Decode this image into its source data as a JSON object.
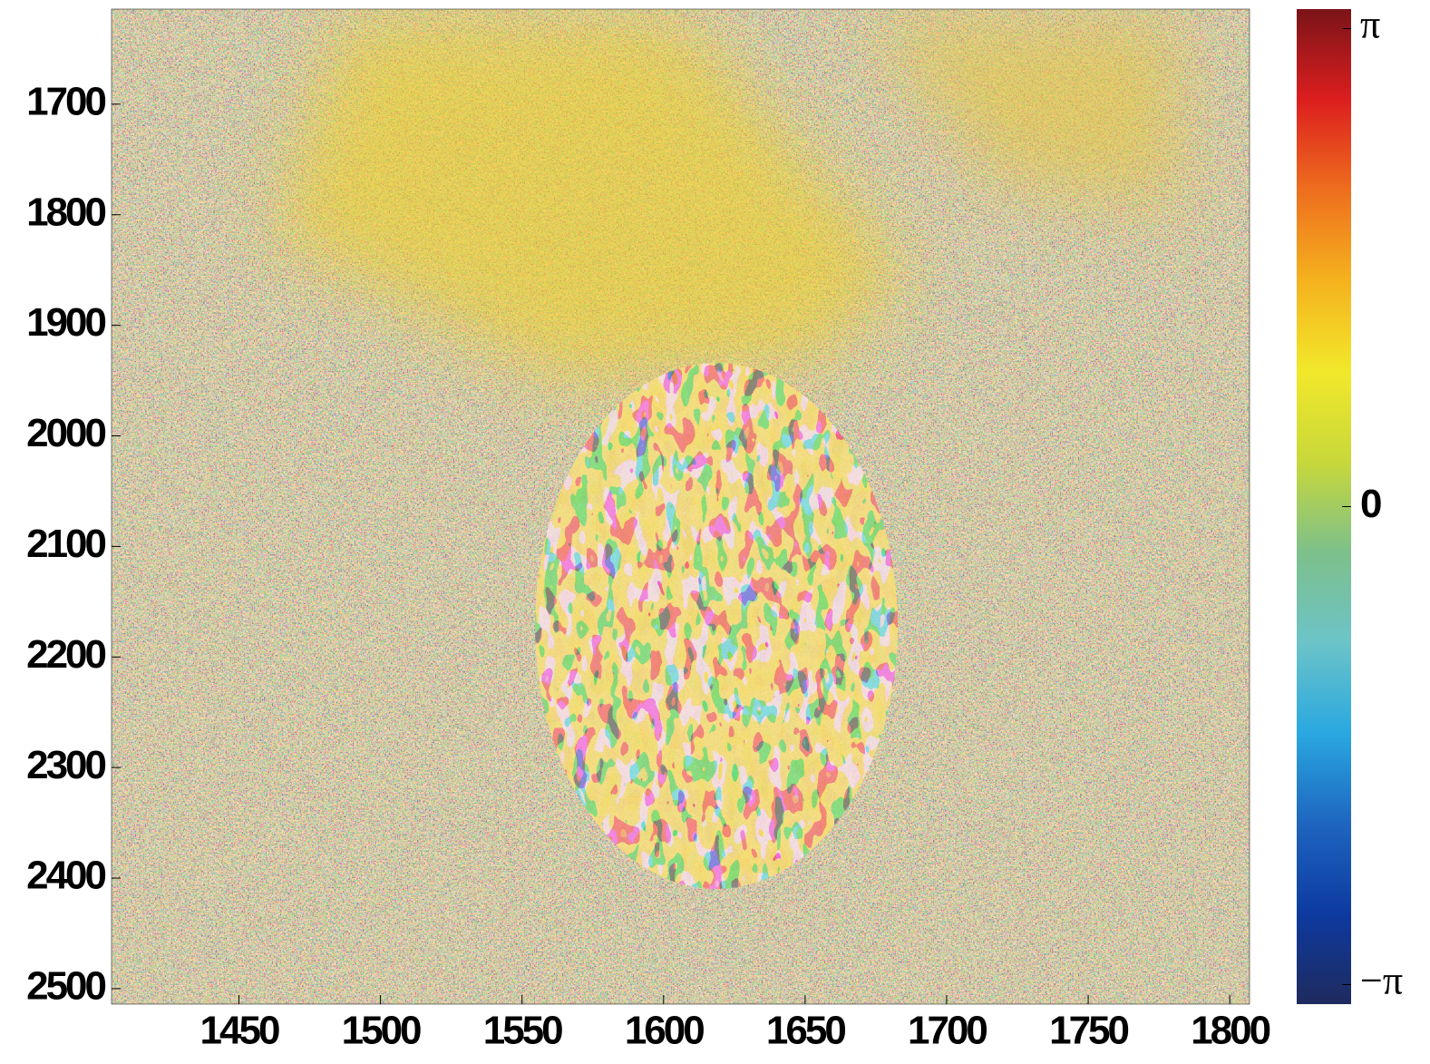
{
  "chart_data": {
    "type": "heatmap",
    "xlim": [
      1405,
      1807
    ],
    "xticks": [
      1450,
      1500,
      1550,
      1600,
      1650,
      1700,
      1750,
      1800
    ],
    "ylim": [
      1614,
      2514
    ],
    "yticks": [
      1700,
      1800,
      1900,
      2000,
      2100,
      2200,
      2300,
      2400,
      2500
    ],
    "y_inverted": true,
    "clim": [
      -3.27,
      3.27
    ],
    "cticks": [
      {
        "value": -3.1416,
        "label": "−π"
      },
      0,
      {
        "value": 3.1416,
        "label": "π"
      }
    ],
    "colormap": [
      "#1f2a5e",
      "#0d3aa0",
      "#1e66c0",
      "#2aa8e0",
      "#6cc4c8",
      "#7dc08a",
      "#c8d83a",
      "#f2e82a",
      "#f5b21e",
      "#ee6e1e",
      "#dc1e1e",
      "#7a1418"
    ]
  }
}
